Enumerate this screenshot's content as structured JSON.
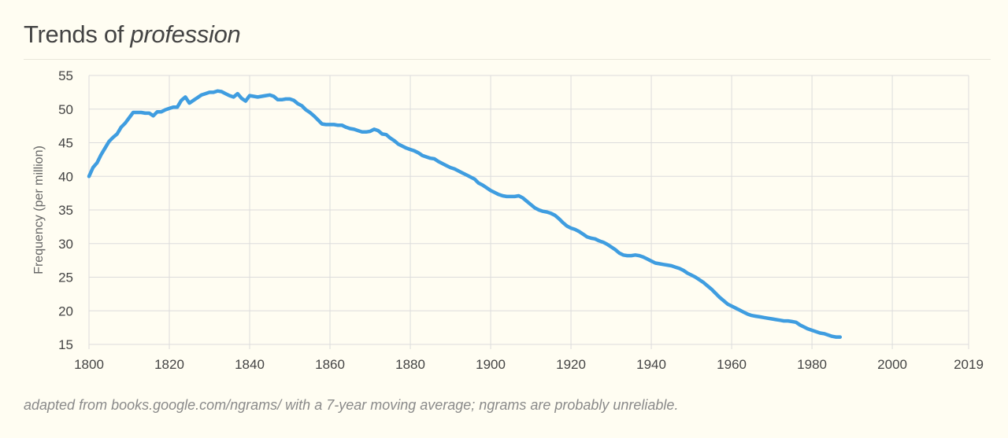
{
  "header": {
    "title_prefix": "Trends of ",
    "title_term": "profession"
  },
  "footer": {
    "caption": "adapted from books.google.com/ngrams/ with a 7-year moving average; ngrams are probably unreliable."
  },
  "colors": {
    "line": "#3f9de0",
    "grid": "#dcdcdc",
    "background": "#fffdf2"
  },
  "chart_data": {
    "type": "line",
    "title": "Trends of profession",
    "xlabel": "",
    "ylabel": "Frequency (per million)",
    "xlim": [
      1800,
      2019
    ],
    "ylim": [
      15,
      55
    ],
    "x_ticks": [
      1800,
      1820,
      1840,
      1860,
      1880,
      1900,
      1920,
      1940,
      1960,
      1980,
      2000,
      2019
    ],
    "y_ticks": [
      15,
      20,
      25,
      30,
      35,
      40,
      45,
      50,
      55
    ],
    "series": [
      {
        "name": "profession",
        "points": [
          [
            1800,
            40.0
          ],
          [
            1801,
            41.3
          ],
          [
            1802,
            42.0
          ],
          [
            1803,
            43.2
          ],
          [
            1804,
            44.2
          ],
          [
            1805,
            45.2
          ],
          [
            1806,
            45.8
          ],
          [
            1807,
            46.3
          ],
          [
            1808,
            47.3
          ],
          [
            1809,
            47.9
          ],
          [
            1810,
            48.7
          ],
          [
            1811,
            49.5
          ],
          [
            1812,
            49.5
          ],
          [
            1813,
            49.5
          ],
          [
            1814,
            49.4
          ],
          [
            1815,
            49.4
          ],
          [
            1816,
            49.0
          ],
          [
            1817,
            49.6
          ],
          [
            1818,
            49.6
          ],
          [
            1819,
            49.9
          ],
          [
            1820,
            50.1
          ],
          [
            1821,
            50.3
          ],
          [
            1822,
            50.3
          ],
          [
            1823,
            51.3
          ],
          [
            1824,
            51.8
          ],
          [
            1825,
            50.9
          ],
          [
            1826,
            51.3
          ],
          [
            1827,
            51.7
          ],
          [
            1828,
            52.1
          ],
          [
            1829,
            52.3
          ],
          [
            1830,
            52.5
          ],
          [
            1831,
            52.5
          ],
          [
            1832,
            52.7
          ],
          [
            1833,
            52.6
          ],
          [
            1834,
            52.3
          ],
          [
            1835,
            52.0
          ],
          [
            1836,
            51.8
          ],
          [
            1837,
            52.3
          ],
          [
            1838,
            51.6
          ],
          [
            1839,
            51.2
          ],
          [
            1840,
            52.0
          ],
          [
            1841,
            51.9
          ],
          [
            1842,
            51.8
          ],
          [
            1843,
            51.9
          ],
          [
            1844,
            52.0
          ],
          [
            1845,
            52.1
          ],
          [
            1846,
            51.9
          ],
          [
            1847,
            51.4
          ],
          [
            1848,
            51.4
          ],
          [
            1849,
            51.5
          ],
          [
            1850,
            51.5
          ],
          [
            1851,
            51.3
          ],
          [
            1852,
            50.8
          ],
          [
            1853,
            50.5
          ],
          [
            1854,
            49.9
          ],
          [
            1855,
            49.5
          ],
          [
            1856,
            49.0
          ],
          [
            1857,
            48.4
          ],
          [
            1858,
            47.8
          ],
          [
            1859,
            47.7
          ],
          [
            1860,
            47.7
          ],
          [
            1861,
            47.7
          ],
          [
            1862,
            47.6
          ],
          [
            1863,
            47.6
          ],
          [
            1864,
            47.3
          ],
          [
            1865,
            47.1
          ],
          [
            1866,
            47.0
          ],
          [
            1867,
            46.8
          ],
          [
            1868,
            46.6
          ],
          [
            1869,
            46.6
          ],
          [
            1870,
            46.7
          ],
          [
            1871,
            47.0
          ],
          [
            1872,
            46.8
          ],
          [
            1873,
            46.3
          ],
          [
            1874,
            46.2
          ],
          [
            1875,
            45.7
          ],
          [
            1876,
            45.3
          ],
          [
            1877,
            44.8
          ],
          [
            1878,
            44.5
          ],
          [
            1879,
            44.2
          ],
          [
            1880,
            44.0
          ],
          [
            1881,
            43.8
          ],
          [
            1882,
            43.5
          ],
          [
            1883,
            43.1
          ],
          [
            1884,
            42.9
          ],
          [
            1885,
            42.7
          ],
          [
            1886,
            42.6
          ],
          [
            1887,
            42.2
          ],
          [
            1888,
            41.9
          ],
          [
            1889,
            41.6
          ],
          [
            1890,
            41.3
          ],
          [
            1891,
            41.1
          ],
          [
            1892,
            40.8
          ],
          [
            1893,
            40.5
          ],
          [
            1894,
            40.2
          ],
          [
            1895,
            39.9
          ],
          [
            1896,
            39.6
          ],
          [
            1897,
            39.0
          ],
          [
            1898,
            38.7
          ],
          [
            1899,
            38.3
          ],
          [
            1900,
            37.9
          ],
          [
            1901,
            37.6
          ],
          [
            1902,
            37.3
          ],
          [
            1903,
            37.1
          ],
          [
            1904,
            37.0
          ],
          [
            1905,
            37.0
          ],
          [
            1906,
            37.0
          ],
          [
            1907,
            37.1
          ],
          [
            1908,
            36.8
          ],
          [
            1909,
            36.3
          ],
          [
            1910,
            35.8
          ],
          [
            1911,
            35.3
          ],
          [
            1912,
            35.0
          ],
          [
            1913,
            34.8
          ],
          [
            1914,
            34.7
          ],
          [
            1915,
            34.5
          ],
          [
            1916,
            34.2
          ],
          [
            1917,
            33.7
          ],
          [
            1918,
            33.1
          ],
          [
            1919,
            32.6
          ],
          [
            1920,
            32.3
          ],
          [
            1921,
            32.1
          ],
          [
            1922,
            31.8
          ],
          [
            1923,
            31.4
          ],
          [
            1924,
            31.0
          ],
          [
            1925,
            30.8
          ],
          [
            1926,
            30.7
          ],
          [
            1927,
            30.4
          ],
          [
            1928,
            30.2
          ],
          [
            1929,
            29.9
          ],
          [
            1930,
            29.5
          ],
          [
            1931,
            29.1
          ],
          [
            1932,
            28.6
          ],
          [
            1933,
            28.3
          ],
          [
            1934,
            28.2
          ],
          [
            1935,
            28.2
          ],
          [
            1936,
            28.3
          ],
          [
            1937,
            28.2
          ],
          [
            1938,
            28.0
          ],
          [
            1939,
            27.7
          ],
          [
            1940,
            27.4
          ],
          [
            1941,
            27.1
          ],
          [
            1942,
            27.0
          ],
          [
            1943,
            26.9
          ],
          [
            1944,
            26.8
          ],
          [
            1945,
            26.7
          ],
          [
            1946,
            26.5
          ],
          [
            1947,
            26.3
          ],
          [
            1948,
            26.0
          ],
          [
            1949,
            25.6
          ],
          [
            1950,
            25.3
          ],
          [
            1951,
            25.0
          ],
          [
            1952,
            24.6
          ],
          [
            1953,
            24.2
          ],
          [
            1954,
            23.7
          ],
          [
            1955,
            23.2
          ],
          [
            1956,
            22.6
          ],
          [
            1957,
            22.0
          ],
          [
            1958,
            21.5
          ],
          [
            1959,
            21.0
          ],
          [
            1960,
            20.7
          ],
          [
            1961,
            20.4
          ],
          [
            1962,
            20.1
          ],
          [
            1963,
            19.8
          ],
          [
            1964,
            19.5
          ],
          [
            1965,
            19.3
          ],
          [
            1966,
            19.2
          ],
          [
            1967,
            19.1
          ],
          [
            1968,
            19.0
          ],
          [
            1969,
            18.9
          ],
          [
            1970,
            18.8
          ],
          [
            1971,
            18.7
          ],
          [
            1972,
            18.6
          ],
          [
            1973,
            18.5
          ],
          [
            1974,
            18.5
          ],
          [
            1975,
            18.4
          ],
          [
            1976,
            18.3
          ],
          [
            1977,
            17.9
          ],
          [
            1978,
            17.6
          ],
          [
            1979,
            17.3
          ],
          [
            1980,
            17.1
          ],
          [
            1981,
            16.9
          ],
          [
            1982,
            16.7
          ],
          [
            1983,
            16.6
          ],
          [
            1984,
            16.4
          ],
          [
            1985,
            16.2
          ],
          [
            1986,
            16.1
          ],
          [
            1987,
            16.1
          ]
        ]
      }
    ]
  }
}
